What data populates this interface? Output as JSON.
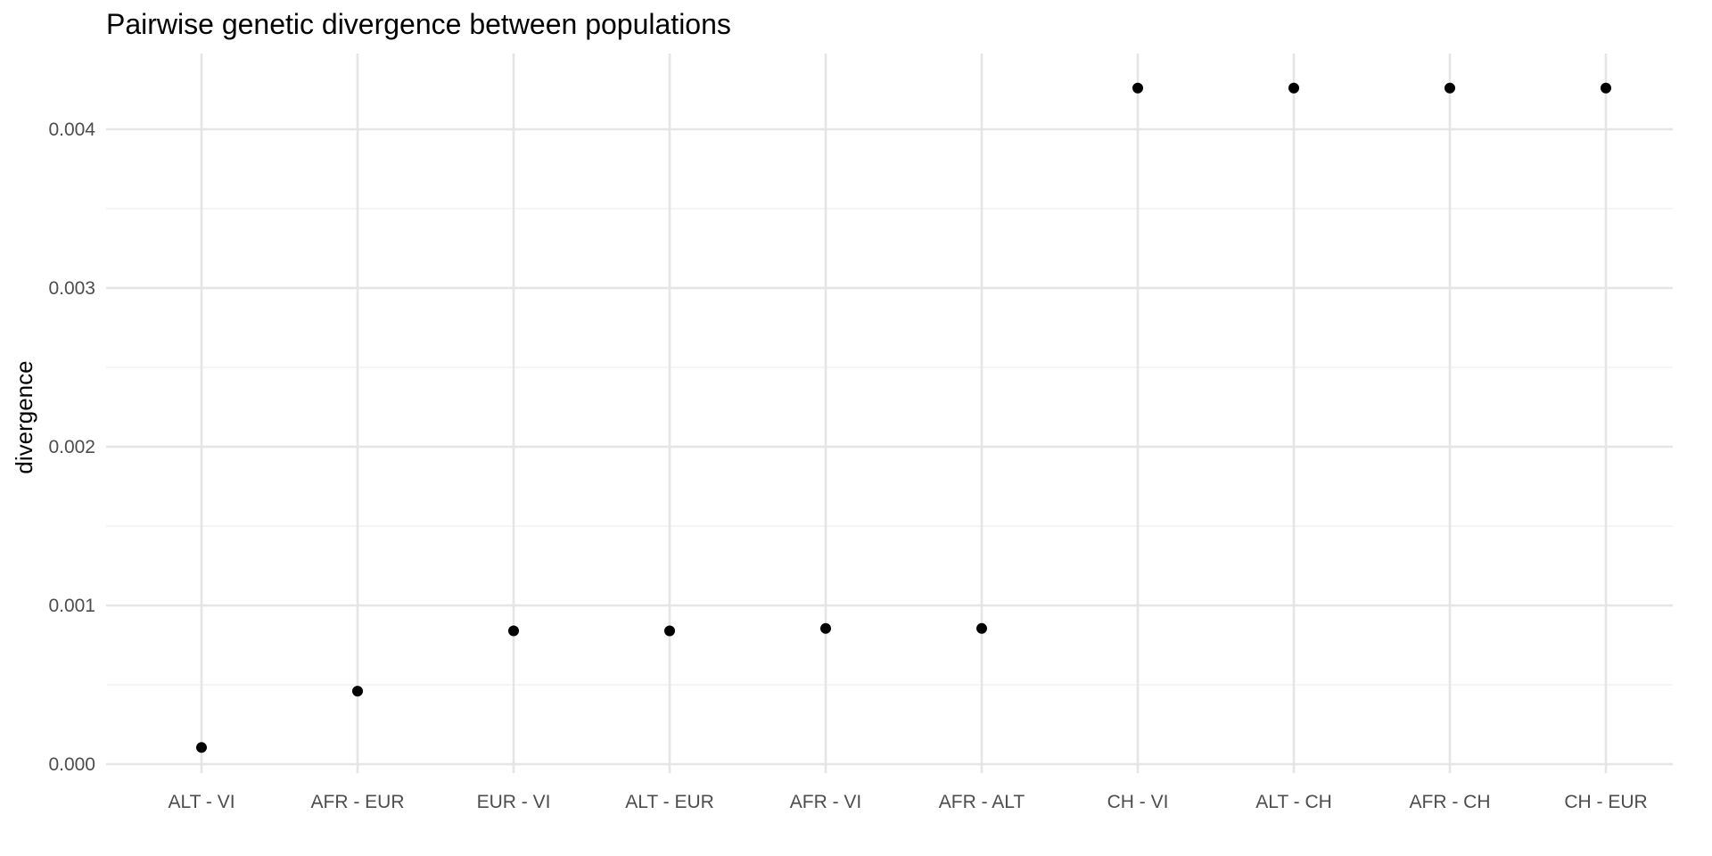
{
  "chart_data": {
    "type": "scatter",
    "title": "Pairwise genetic divergence between populations",
    "xlabel": "",
    "ylabel": "divergence",
    "categories": [
      "ALT - VI",
      "AFR - EUR",
      "EUR - VI",
      "ALT - EUR",
      "AFR - VI",
      "AFR - ALT",
      "CH - VI",
      "ALT - CH",
      "AFR - CH",
      "CH - EUR"
    ],
    "values": [
      0.000105,
      0.00046,
      0.00084,
      0.00084,
      0.000855,
      0.000855,
      0.00426,
      0.00426,
      0.00426,
      0.00426
    ],
    "ylim": [
      0,
      0.0043
    ],
    "y_ticks": [
      0,
      0.001,
      0.002,
      0.003,
      0.004
    ],
    "y_tick_labels": [
      "0.000",
      "0.001",
      "0.002",
      "0.003",
      "0.004"
    ],
    "y_minor_ticks": [
      0.0005,
      0.0015,
      0.0025,
      0.0035
    ],
    "grid": true,
    "legend": "none",
    "colors": {
      "point": "#000000",
      "grid_major": "#e5e5e5",
      "grid_minor": "#efefef",
      "tick_text": "#4d4d4d"
    }
  }
}
